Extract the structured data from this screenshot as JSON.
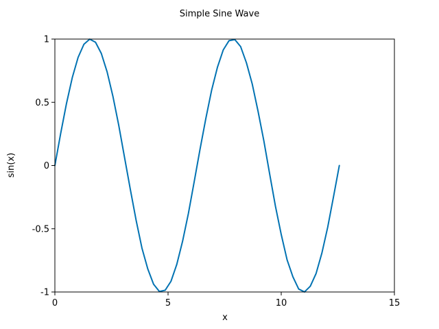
{
  "chart_data": {
    "type": "line",
    "title": "Simple Sine Wave",
    "xlabel": "x",
    "ylabel": "sin(x)",
    "xlim": [
      0,
      15
    ],
    "ylim": [
      -1,
      1
    ],
    "xticks": [
      0,
      5,
      10,
      15
    ],
    "xtick_labels": [
      "0",
      "5",
      "10",
      "15"
    ],
    "yticks": [
      -1,
      -0.5,
      0,
      0.5,
      1
    ],
    "ytick_labels": [
      "-1",
      "-0.5",
      "0",
      "0.5",
      "1"
    ],
    "grid": false,
    "series": [
      {
        "color": "#0072b2",
        "x": [
          0,
          0.2565,
          0.5129,
          0.7694,
          1.0258,
          1.2823,
          1.5387,
          1.7952,
          2.0517,
          2.3081,
          2.5646,
          2.821,
          3.0775,
          3.3339,
          3.5904,
          3.8468,
          4.1033,
          4.3598,
          4.6162,
          4.8727,
          5.1291,
          5.3856,
          5.642,
          5.8985,
          6.1549,
          6.4114,
          6.6679,
          6.9243,
          7.1808,
          7.4372,
          7.6937,
          7.9501,
          8.2066,
          8.4631,
          8.7195,
          8.976,
          9.2324,
          9.4889,
          9.7453,
          10.0018,
          10.2582,
          10.5147,
          10.7712,
          11.0276,
          11.2841,
          11.5405,
          11.797,
          12.0534,
          12.3099,
          12.5664
        ],
        "y": [
          0,
          0.2537,
          0.4907,
          0.6956,
          0.8551,
          0.9586,
          0.9995,
          0.9749,
          0.8861,
          0.7402,
          0.5469,
          0.3187,
          0.0641,
          -0.1893,
          -0.4342,
          -0.6529,
          -0.817,
          -0.9383,
          -0.9959,
          -0.9862,
          -0.9153,
          -0.7818,
          -0.5985,
          -0.379,
          -0.1281,
          0.1279,
          0.371,
          0.5954,
          0.7765,
          0.9139,
          0.9873,
          0.9959,
          0.9401,
          0.812,
          0.6444,
          0.4288,
          0.1948,
          -0.0667,
          -0.3226,
          -0.5469,
          -0.7455,
          -0.8795,
          -0.9767,
          -0.9996,
          -0.9542,
          -0.8531,
          -0.6915,
          -0.4876,
          -0.2462,
          0
        ]
      }
    ]
  }
}
